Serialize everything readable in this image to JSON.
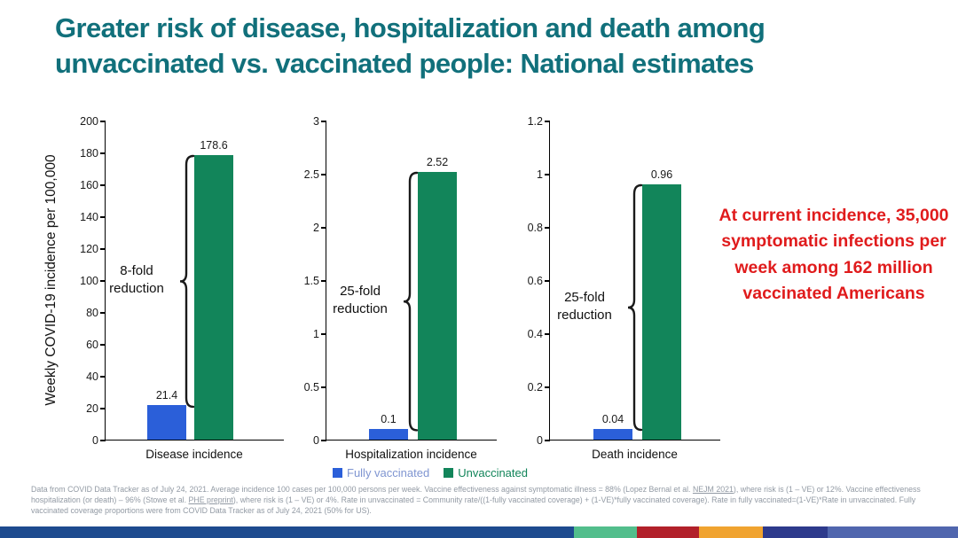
{
  "title_lines": [
    "Greater risk of disease, hospitalization and death among",
    "unvaccinated vs. vaccinated people: National estimates"
  ],
  "title_color": "#11707b",
  "y_axis_title": "Weekly COVID-19 incidence per 100,000",
  "colors": {
    "fully_vaccinated_bar": "#2b5fd9",
    "unvaccinated_bar": "#12855a",
    "annotation_red": "#e01b1c",
    "brace": "#1a1a1a"
  },
  "chart_data": [
    {
      "type": "bar",
      "title": "Disease incidence",
      "categories": [
        "Fully vaccinated",
        "Unvaccinated"
      ],
      "values": [
        21.4,
        178.6
      ],
      "value_labels": [
        "21.4",
        "178.6"
      ],
      "ylim": [
        0,
        200
      ],
      "ytick_labels": [
        "0",
        "20",
        "40",
        "60",
        "80",
        "100",
        "120",
        "140",
        "160",
        "180",
        "200"
      ],
      "ylabel": "Weekly COVID-19 incidence per 100,000",
      "annotation_lines": [
        "8-fold",
        "reduction"
      ],
      "grid": "off",
      "legend_position": "bottom"
    },
    {
      "type": "bar",
      "title": "Hospitalization incidence",
      "categories": [
        "Fully vaccinated",
        "Unvaccinated"
      ],
      "values": [
        0.1,
        2.52
      ],
      "value_labels": [
        "0.1",
        "2.52"
      ],
      "ylim": [
        0,
        3
      ],
      "ytick_labels": [
        "0",
        "0.5",
        "1",
        "1.5",
        "2",
        "2.5",
        "3"
      ],
      "annotation_lines": [
        "25-fold",
        "reduction"
      ],
      "grid": "off",
      "legend_position": "bottom"
    },
    {
      "type": "bar",
      "title": "Death incidence",
      "categories": [
        "Fully vaccinated",
        "Unvaccinated"
      ],
      "values": [
        0.04,
        0.96
      ],
      "value_labels": [
        "0.04",
        "0.96"
      ],
      "ylim": [
        0,
        1.2
      ],
      "ytick_labels": [
        "0",
        "0.2",
        "0.4",
        "0.6",
        "0.8",
        "1",
        "1.2"
      ],
      "annotation_lines": [
        "25-fold",
        "reduction"
      ],
      "grid": "off",
      "legend_position": "bottom"
    }
  ],
  "legend": {
    "items": [
      {
        "label": "Fully vaccinated",
        "swatch_color": "#2b5fd9",
        "text_color": "#7f95d1"
      },
      {
        "label": "Unvaccinated",
        "swatch_color": "#12855a",
        "text_color": "#12855a"
      }
    ]
  },
  "annotation_box": {
    "text": "At current incidence, 35,000 symptomatic infections per week among 162 million vaccinated Americans",
    "color": "#e01b1c"
  },
  "footnote": {
    "parts": [
      {
        "text": "Data from COVID Data Tracker as of July 24, 2021. Average incidence 100 cases per 100,000 persons per week. Vaccine effectiveness against symptomatic illness = 88% (Lopez Bernal et al. ",
        "underline": false
      },
      {
        "text": "NEJM 2021",
        "underline": true,
        "name": "link-nejm-2021"
      },
      {
        "text": "), where risk is (1 – VE) or 12%. Vaccine effectiveness hospitalization (or death) – 96% (Stowe et al. ",
        "underline": false
      },
      {
        "text": "PHE preprint",
        "underline": true,
        "name": "link-phe-preprint"
      },
      {
        "text": "), where risk is (1 – VE) or 4%.  Rate in unvaccinated = Community rate/((1-fully vaccinated coverage) + (1-VE)*fully vaccinated coverage). Rate in fully vaccinated=(1-VE)*Rate in unvaccinated. Fully vaccinated coverage proportions were from COVID Data Tracker as of July 24, 2021 (50% for US).",
        "underline": false
      }
    ]
  },
  "footer_strip": {
    "segment_colors": [
      "#1e4b8f",
      "#52be8c",
      "#b2202a",
      "#f0a32f",
      "#2d3a8c",
      "#5066ae"
    ]
  }
}
